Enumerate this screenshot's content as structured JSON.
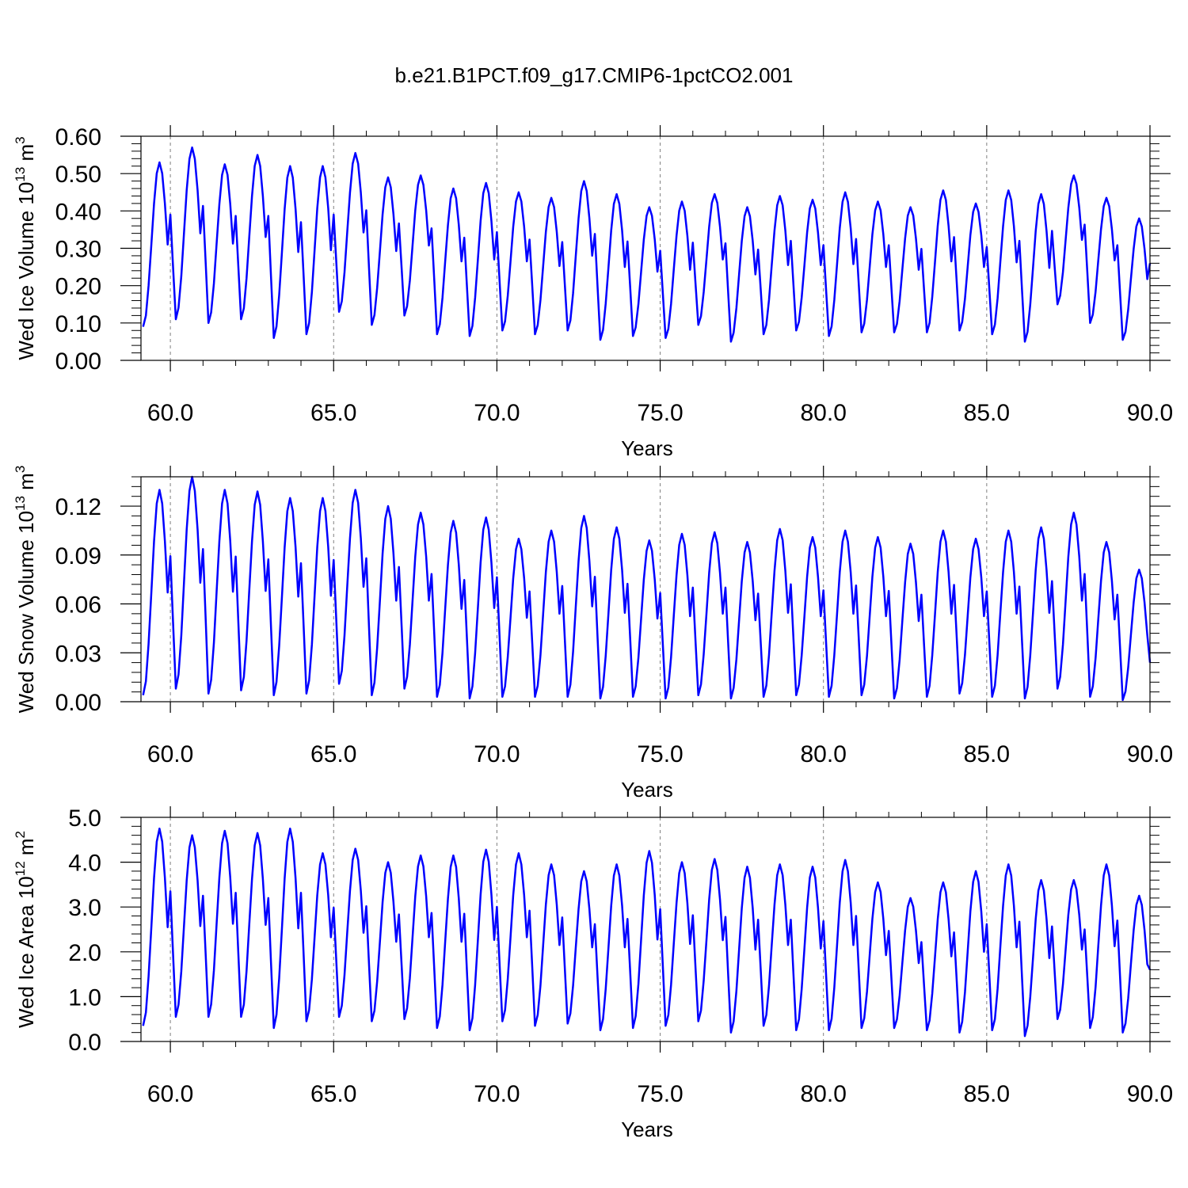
{
  "title": "b.e21.B1PCT.f09_g17.CMIP6-1pctCO2.001",
  "colors": {
    "line": "#0000ff",
    "axis": "#000000",
    "refline": "#808080"
  },
  "chart_data": [
    {
      "type": "line",
      "xlabel": "Years",
      "ylabel": {
        "main": "Wed Ice Volume 10",
        "exp": "13",
        "unit": " m",
        "unit_exp": "3"
      },
      "xlim": [
        59.1,
        90.0
      ],
      "ylim": [
        0.0,
        0.6
      ],
      "xticks": [
        60,
        65,
        70,
        75,
        80,
        85,
        90
      ],
      "xtick_labels": [
        "60.0",
        "65.0",
        "70.0",
        "75.0",
        "80.0",
        "85.0",
        "90.0"
      ],
      "yticks": [
        0.0,
        0.1,
        0.2,
        0.3,
        0.4,
        0.5,
        0.6
      ],
      "ytick_labels": [
        "0.00",
        "0.10",
        "0.20",
        "0.30",
        "0.40",
        "0.50",
        "0.60"
      ],
      "reference_years": [
        60,
        65,
        70,
        75,
        80,
        85
      ],
      "start_year": 59.0,
      "end_value": 0.26,
      "annual_max": [
        0.53,
        0.57,
        0.525,
        0.55,
        0.52,
        0.52,
        0.555,
        0.49,
        0.495,
        0.46,
        0.475,
        0.45,
        0.435,
        0.48,
        0.445,
        0.41,
        0.425,
        0.445,
        0.41,
        0.44,
        0.43,
        0.45,
        0.425,
        0.41,
        0.455,
        0.42,
        0.455,
        0.445,
        0.495,
        0.435,
        0.38
      ],
      "annual_min": [
        0.09,
        0.11,
        0.1,
        0.11,
        0.06,
        0.07,
        0.13,
        0.095,
        0.12,
        0.07,
        0.065,
        0.08,
        0.07,
        0.08,
        0.055,
        0.065,
        0.06,
        0.095,
        0.05,
        0.07,
        0.08,
        0.065,
        0.075,
        0.075,
        0.075,
        0.08,
        0.07,
        0.05,
        0.15,
        0.1,
        0.055
      ]
    },
    {
      "type": "line",
      "xlabel": "Years",
      "ylabel": {
        "main": "Wed Snow Volume 10",
        "exp": "13",
        "unit": " m",
        "unit_exp": "3"
      },
      "xlim": [
        59.1,
        90.0
      ],
      "ylim": [
        0.0,
        0.138
      ],
      "xticks": [
        60,
        65,
        70,
        75,
        80,
        85,
        90
      ],
      "xtick_labels": [
        "60.0",
        "65.0",
        "70.0",
        "75.0",
        "80.0",
        "85.0",
        "90.0"
      ],
      "yticks": [
        0.0,
        0.03,
        0.06,
        0.09,
        0.12
      ],
      "ytick_labels": [
        "0.00",
        "0.03",
        "0.06",
        "0.09",
        "0.12"
      ],
      "reference_years": [
        60,
        65,
        70,
        75,
        80,
        85
      ],
      "start_year": 59.0,
      "end_value": 0.024,
      "annual_max": [
        0.13,
        0.138,
        0.13,
        0.129,
        0.125,
        0.125,
        0.13,
        0.12,
        0.116,
        0.111,
        0.113,
        0.1,
        0.105,
        0.114,
        0.107,
        0.099,
        0.103,
        0.104,
        0.098,
        0.106,
        0.101,
        0.105,
        0.101,
        0.097,
        0.105,
        0.1,
        0.105,
        0.107,
        0.116,
        0.098,
        0.081
      ],
      "annual_min": [
        0.004,
        0.008,
        0.005,
        0.007,
        0.004,
        0.005,
        0.011,
        0.004,
        0.008,
        0.003,
        0.002,
        0.003,
        0.003,
        0.003,
        0.002,
        0.003,
        0.002,
        0.004,
        0.002,
        0.003,
        0.004,
        0.003,
        0.004,
        0.002,
        0.003,
        0.005,
        0.003,
        0.002,
        0.008,
        0.003,
        0.001
      ]
    },
    {
      "type": "line",
      "xlabel": "Years",
      "ylabel": {
        "main": "Wed Ice Area 10",
        "exp": "12",
        "unit": " m",
        "unit_exp": "2"
      },
      "xlim": [
        59.1,
        90.0
      ],
      "ylim": [
        0.0,
        5.0
      ],
      "xticks": [
        60,
        65,
        70,
        75,
        80,
        85,
        90
      ],
      "xtick_labels": [
        "60.0",
        "65.0",
        "70.0",
        "75.0",
        "80.0",
        "85.0",
        "90.0"
      ],
      "yticks": [
        0.0,
        1.0,
        2.0,
        3.0,
        4.0,
        5.0
      ],
      "ytick_labels": [
        "0.0",
        "1.0",
        "2.0",
        "3.0",
        "4.0",
        "5.0"
      ],
      "reference_years": [
        60,
        65,
        70,
        75,
        80,
        85
      ],
      "start_year": 59.0,
      "end_value": 1.6,
      "annual_max": [
        4.75,
        4.6,
        4.7,
        4.65,
        4.75,
        4.2,
        4.3,
        4.0,
        4.15,
        4.15,
        4.28,
        4.2,
        3.95,
        3.8,
        3.95,
        4.25,
        4.0,
        4.07,
        3.9,
        3.95,
        3.9,
        4.05,
        3.55,
        3.2,
        3.55,
        3.8,
        3.95,
        3.6,
        3.6,
        3.95,
        3.25
      ],
      "annual_min": [
        0.35,
        0.55,
        0.55,
        0.55,
        0.3,
        0.45,
        0.55,
        0.45,
        0.5,
        0.3,
        0.25,
        0.45,
        0.35,
        0.4,
        0.25,
        0.3,
        0.35,
        0.45,
        0.2,
        0.35,
        0.25,
        0.25,
        0.3,
        0.3,
        0.25,
        0.2,
        0.25,
        0.12,
        0.5,
        0.3,
        0.2
      ]
    }
  ]
}
